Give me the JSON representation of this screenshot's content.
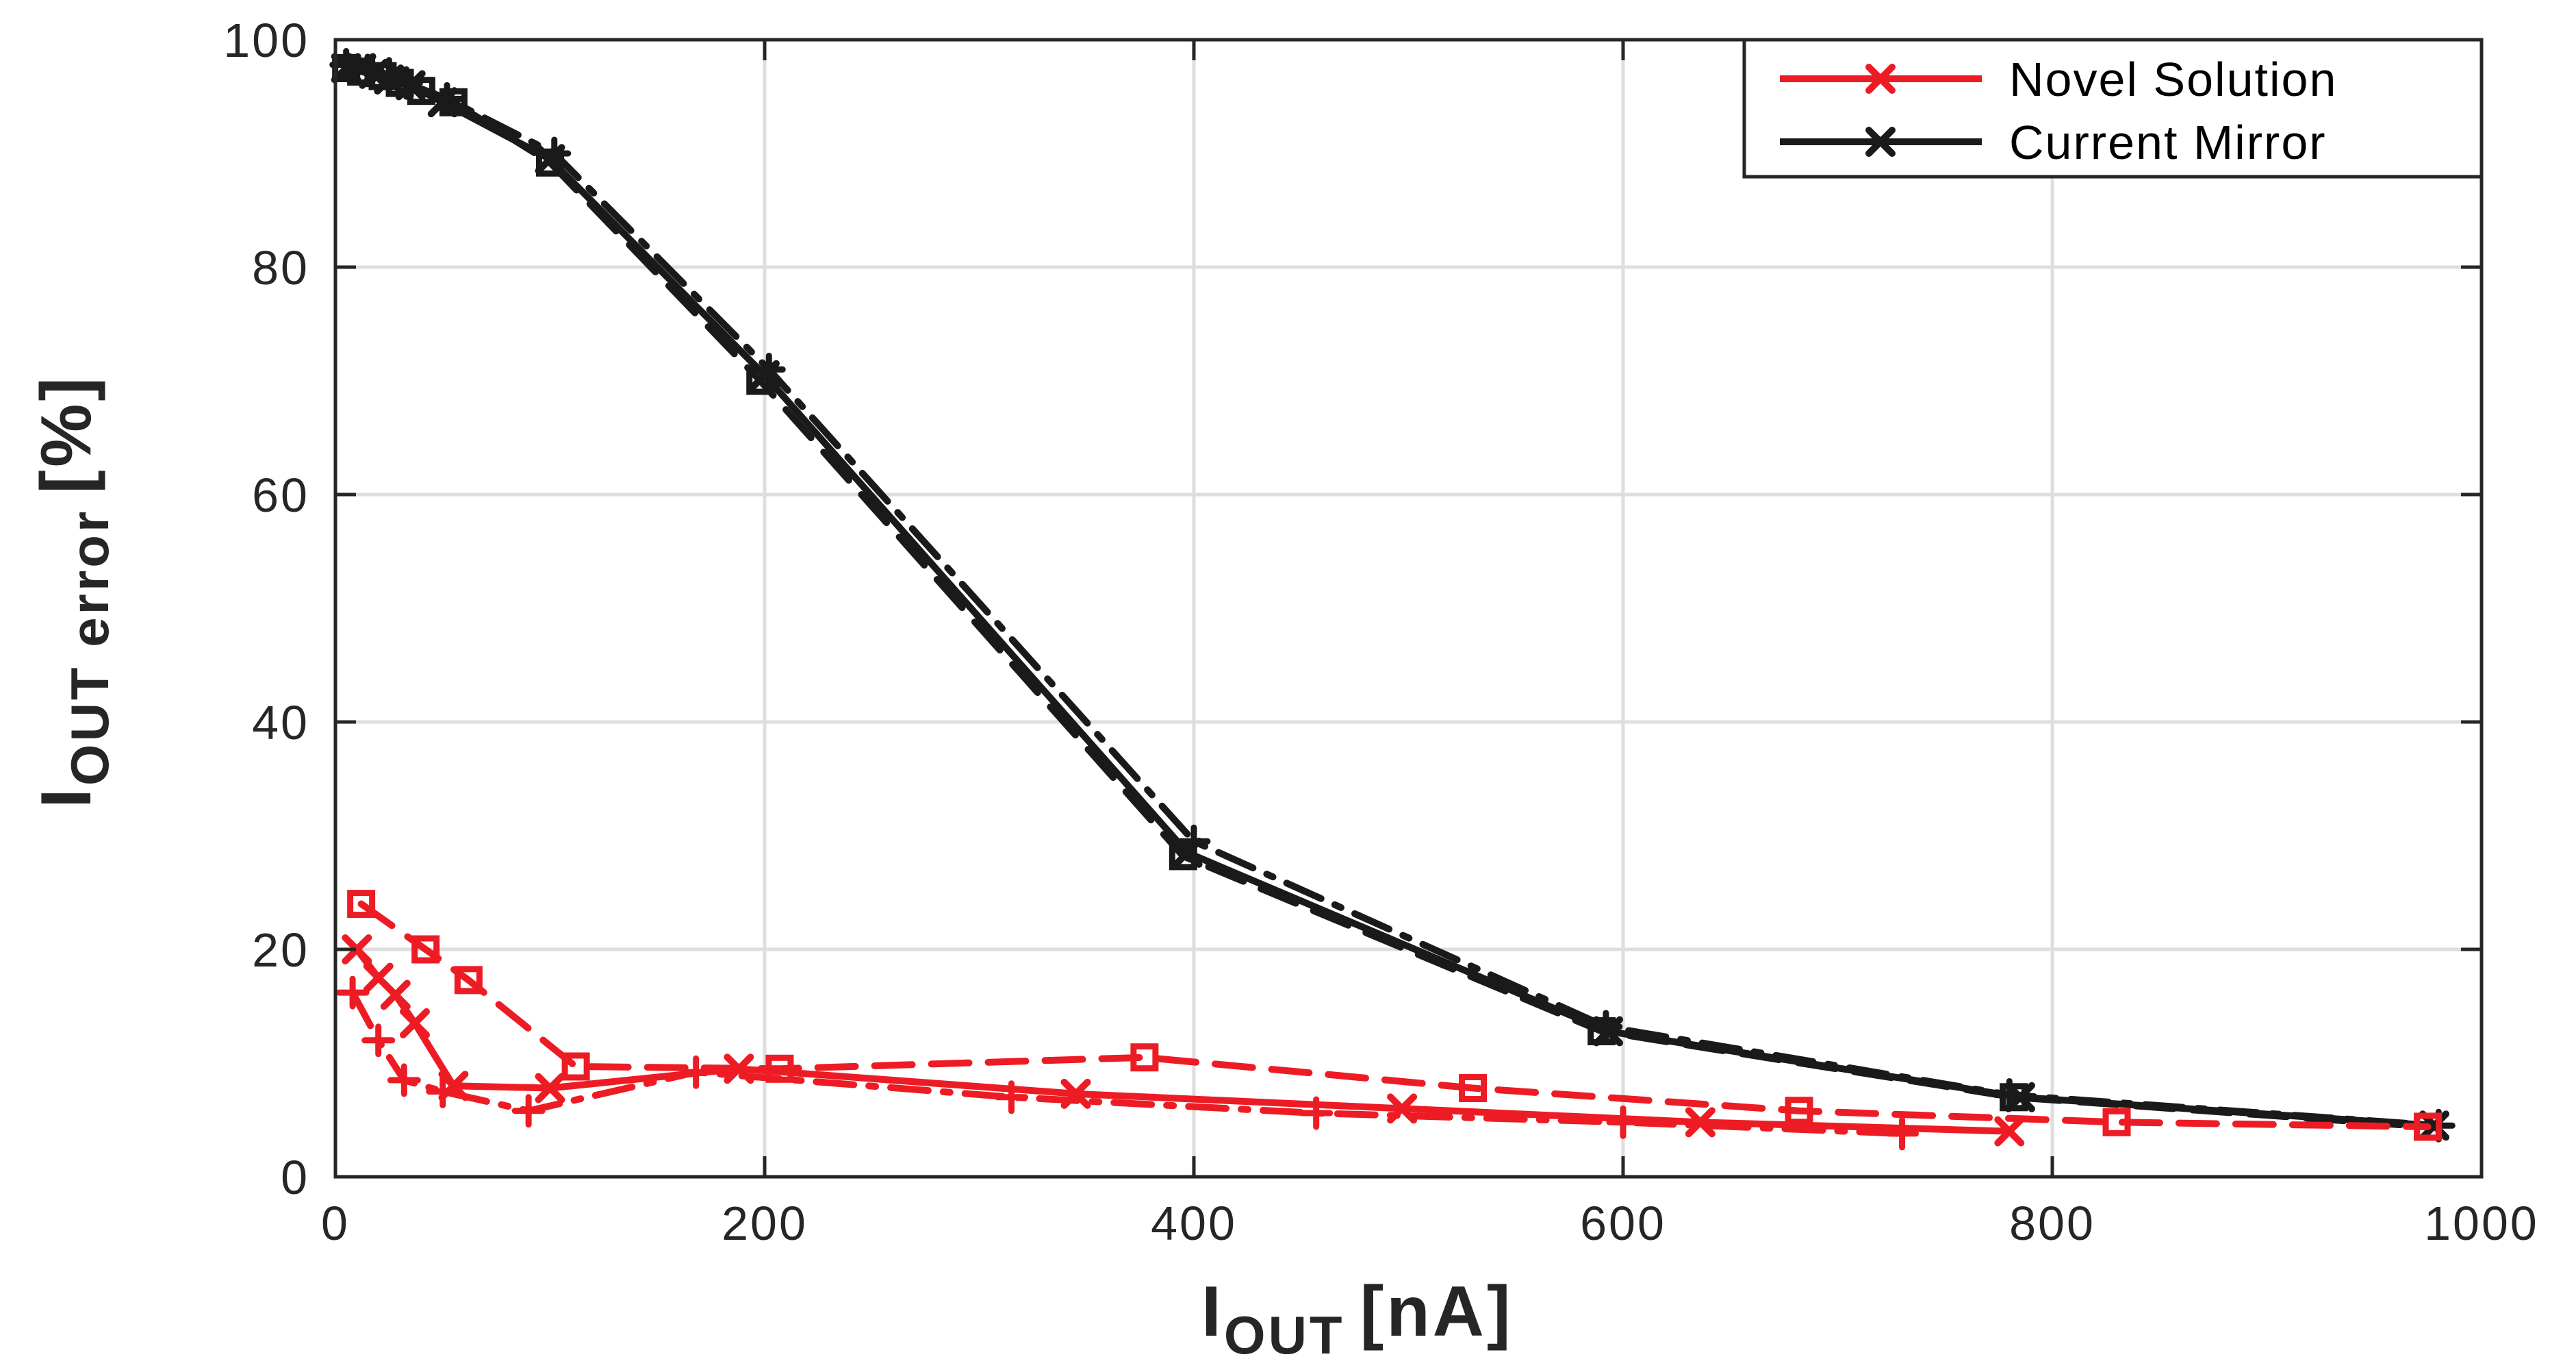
{
  "chart_data": {
    "type": "line",
    "title": "",
    "xlabel": {
      "main": "I",
      "sub": "OUT",
      "unit": "[nA]"
    },
    "ylabel": {
      "main": "I",
      "sub": "OUT error",
      "unit": "[%]"
    },
    "xlim": [
      0,
      1000
    ],
    "ylim": [
      0,
      100
    ],
    "xticks": [
      0,
      200,
      400,
      600,
      800,
      1000
    ],
    "yticks": [
      0,
      20,
      40,
      60,
      80,
      100
    ],
    "xtick_labels": [
      "0",
      "200",
      "400",
      "600",
      "800",
      "1000"
    ],
    "ytick_labels": [
      "0",
      "20",
      "40",
      "60",
      "80",
      "100"
    ],
    "grid": true,
    "legend_position": "top-right",
    "legend": [
      {
        "label": "Novel Solution",
        "color": "#ed1c24"
      },
      {
        "label": "Current Mirror",
        "color": "#1a1a1a"
      }
    ],
    "series": [
      {
        "name": "Current Mirror",
        "color": "#1a1a1a",
        "dash": "solid",
        "marker": "x",
        "x": [
          5,
          12,
          18,
          25,
          35,
          50,
          100,
          200,
          397,
          593,
          785,
          978
        ],
        "y": [
          97.5,
          97.5,
          97,
          96.5,
          96,
          94.5,
          89.5,
          70.5,
          28.5,
          12.8,
          7.0,
          4.5
        ]
      },
      {
        "name": "Current Mirror",
        "color": "#1a1a1a",
        "dash": "dashed",
        "marker": "square",
        "x": [
          5,
          12,
          22,
          30,
          40,
          55,
          100,
          198,
          395,
          590,
          782,
          975
        ],
        "y": [
          97.5,
          97.2,
          96.8,
          96.2,
          95.5,
          94.5,
          89.2,
          70.0,
          28.2,
          12.8,
          7.0,
          4.4
        ]
      },
      {
        "name": "Current Mirror",
        "color": "#1a1a1a",
        "dash": "dashdot",
        "marker": "plus",
        "x": [
          5,
          15,
          25,
          33,
          52,
          102,
          202,
          400,
          592,
          780,
          980
        ],
        "y": [
          97.8,
          97.3,
          97.0,
          96.2,
          94.8,
          90.0,
          71.0,
          29.5,
          13.2,
          7.2,
          4.5
        ]
      },
      {
        "name": "Novel Solution",
        "color": "#ed1c24",
        "dash": "solid",
        "marker": "x",
        "x": [
          10,
          20,
          28,
          37,
          55,
          100,
          188,
          345,
          497,
          636,
          780
        ],
        "y": [
          20.0,
          17.5,
          16.0,
          13.5,
          8.0,
          7.8,
          9.5,
          7.3,
          6.0,
          4.8,
          4.0
        ]
      },
      {
        "name": "Novel Solution",
        "color": "#ed1c24",
        "dash": "dashed",
        "marker": "square",
        "x": [
          12,
          42,
          62,
          112,
          207,
          377,
          530,
          682,
          830,
          975
        ],
        "y": [
          24.0,
          20.0,
          17.3,
          9.7,
          9.5,
          10.5,
          7.8,
          5.8,
          4.8,
          4.4
        ]
      },
      {
        "name": "Novel Solution",
        "color": "#ed1c24",
        "dash": "dashdot",
        "marker": "plus",
        "x": [
          8,
          20,
          32,
          50,
          90,
          168,
          315,
          457,
          600,
          730
        ],
        "y": [
          16.2,
          12.0,
          8.5,
          7.5,
          5.8,
          9.2,
          7.0,
          5.6,
          4.8,
          3.8
        ]
      }
    ]
  }
}
